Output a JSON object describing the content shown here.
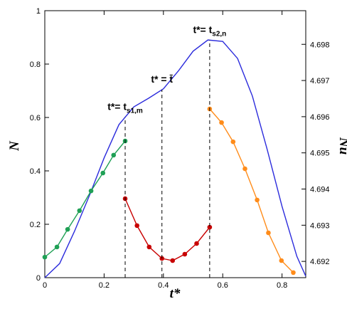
{
  "chart_data": {
    "type": "line",
    "xlabel": "t*",
    "ylabel": "N",
    "y2label": "Nu",
    "xlim": [
      0,
      0.88
    ],
    "xticks": [
      0,
      0.2,
      0.4,
      0.6,
      0.8
    ],
    "ylim": [
      0,
      1
    ],
    "yticks": [
      0,
      0.2,
      0.4,
      0.6,
      0.8,
      1
    ],
    "y2lim": [
      4.69155,
      4.69893
    ],
    "y2ticks": [
      4.692,
      4.693,
      4.694,
      4.695,
      4.696,
      4.697,
      4.698
    ],
    "series": [
      {
        "color": "#2b2bdc",
        "axis": "y2",
        "markers": false,
        "x": [
          0,
          0.05,
          0.1,
          0.15,
          0.2,
          0.25,
          0.3,
          0.35,
          0.4,
          0.45,
          0.5,
          0.55,
          0.6,
          0.65,
          0.7,
          0.75,
          0.8,
          0.85,
          0.88
        ],
        "values": [
          4.69155,
          4.69194,
          4.69283,
          4.69381,
          4.69486,
          4.69578,
          4.69627,
          4.69651,
          4.69677,
          4.69726,
          4.69781,
          4.69812,
          4.69808,
          4.69761,
          4.69657,
          4.69509,
          4.69352,
          4.69214,
          4.69159
        ]
      },
      {
        "color": "#1fa055",
        "markers": true,
        "x": [
          0,
          0.041,
          0.077,
          0.117,
          0.156,
          0.196,
          0.232,
          0.271
        ],
        "values": [
          0.077,
          0.115,
          0.181,
          0.251,
          0.325,
          0.392,
          0.459,
          0.512
        ]
      },
      {
        "color": "#c80000",
        "markers": true,
        "x": [
          0.271,
          0.311,
          0.352,
          0.395,
          0.431,
          0.472,
          0.512,
          0.556
        ],
        "values": [
          0.296,
          0.195,
          0.115,
          0.072,
          0.064,
          0.088,
          0.128,
          0.189
        ]
      },
      {
        "color": "#ff8c1a",
        "markers": true,
        "x": [
          0.556,
          0.596,
          0.635,
          0.675,
          0.716,
          0.754,
          0.798,
          0.838
        ],
        "values": [
          0.632,
          0.581,
          0.509,
          0.408,
          0.291,
          0.168,
          0.064,
          0.019
        ]
      }
    ],
    "annotations": [
      {
        "text": "t*= t",
        "sub": "s1,m",
        "x": 0.271
      },
      {
        "text": "t* = t̄",
        "x": 0.395
      },
      {
        "text": "t*= t",
        "sub": "s2,n",
        "x": 0.556
      }
    ]
  }
}
